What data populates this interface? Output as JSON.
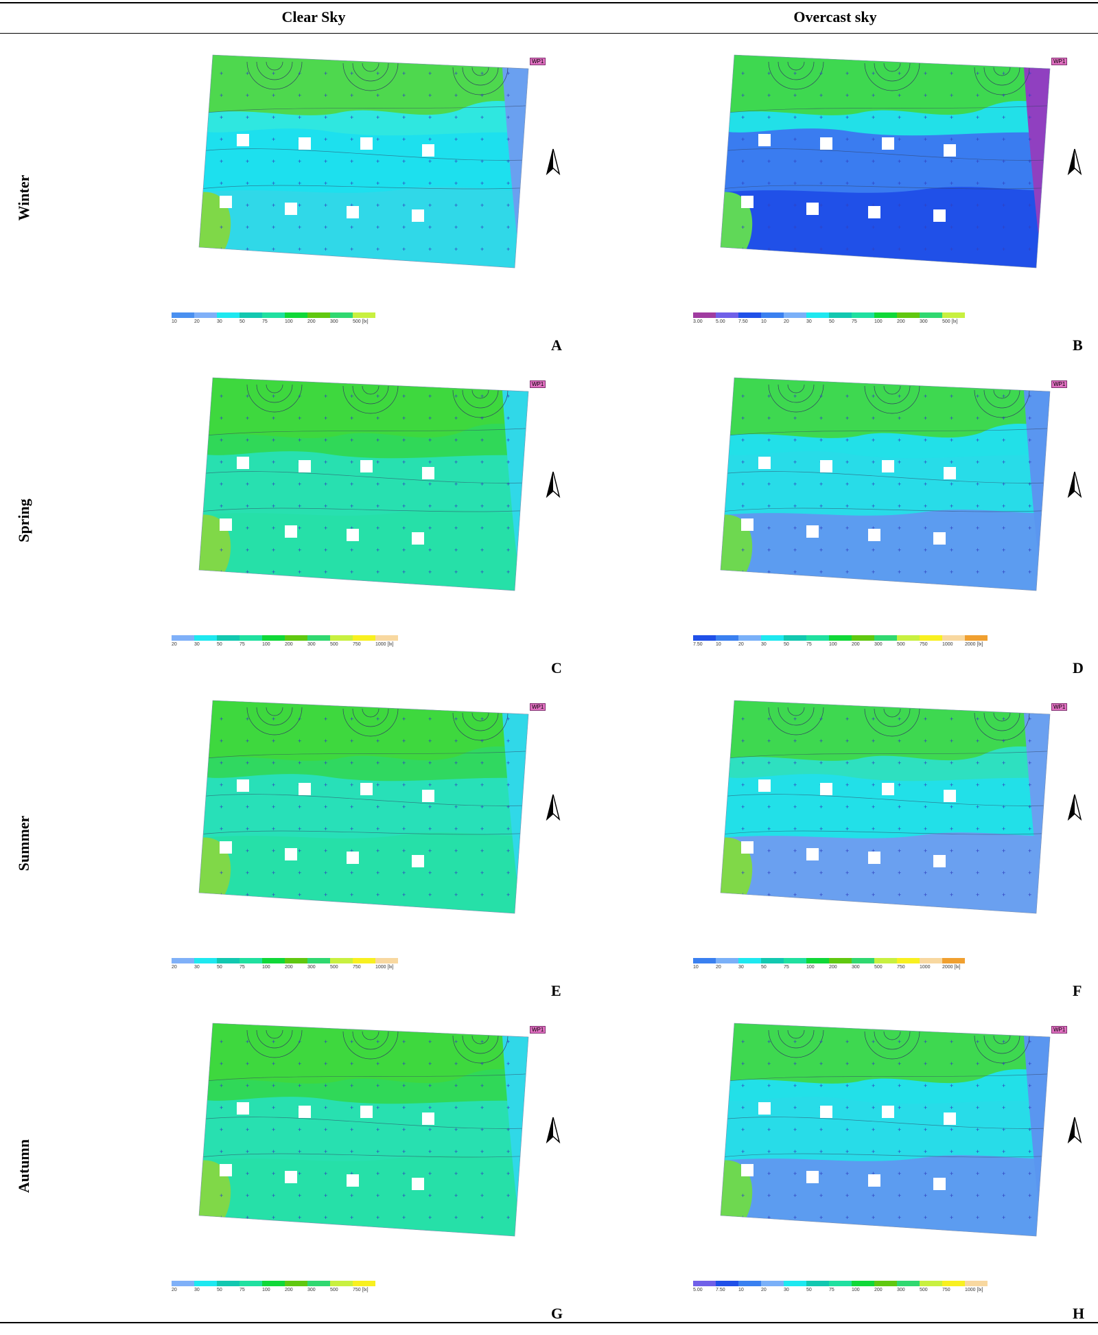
{
  "columns": {
    "clear": "Clear Sky",
    "overcast": "Overcast sky"
  },
  "rows": [
    "Winter",
    "Spring",
    "Summer",
    "Autumn"
  ],
  "window_marker": "WP1",
  "panels": [
    {
      "id": "A",
      "label": "A",
      "sky": "clear",
      "season": "Winter",
      "legend": [
        "10",
        "20",
        "30",
        "50",
        "75",
        "100",
        "200",
        "300",
        "500 [lx]"
      ],
      "legend_colors": [
        "#4a90f0",
        "#7fb0f8",
        "#1ee8f0",
        "#12c8b0",
        "#20e0a0",
        "#10d838",
        "#60c810",
        "#30d870",
        "#c8f040"
      ],
      "zone_colors": {
        "top": "#4ed84e",
        "upper": "#2fe7e0",
        "middle": "#1de0ee",
        "lower": "#30d8e8",
        "corner": "#7fd848",
        "right": "#6aa0f0"
      }
    },
    {
      "id": "B",
      "label": "B",
      "sky": "overcast",
      "season": "Winter",
      "legend": [
        "3.00",
        "5.00",
        "7.50",
        "10",
        "20",
        "30",
        "50",
        "75",
        "100",
        "200",
        "300",
        "500 [lx]"
      ],
      "legend_colors": [
        "#a03ca0",
        "#7060e8",
        "#2050e8",
        "#3a80f0",
        "#7ab0f8",
        "#1ee8f0",
        "#12c8b0",
        "#20e0a0",
        "#10d838",
        "#60c810",
        "#30d870",
        "#c8f040"
      ],
      "zone_colors": {
        "top": "#3ed850",
        "upper": "#22e0e8",
        "middle": "#3a7cf0",
        "lower": "#2050e8",
        "corner": "#60d858",
        "right": "#9040c0"
      }
    },
    {
      "id": "C",
      "label": "C",
      "sky": "clear",
      "season": "Spring",
      "legend": [
        "20",
        "30",
        "50",
        "75",
        "100",
        "200",
        "300",
        "500",
        "750",
        "1000 [lx]"
      ],
      "legend_colors": [
        "#7fb0f8",
        "#1ee8f0",
        "#12c8b0",
        "#20e0a0",
        "#10d838",
        "#60c810",
        "#30d870",
        "#c8f040",
        "#f8f020",
        "#f8d8a0"
      ],
      "zone_colors": {
        "top": "#3ed83e",
        "upper": "#30d858",
        "middle": "#28e0b0",
        "lower": "#26e0a8",
        "corner": "#80d848",
        "right": "#30d8e8"
      }
    },
    {
      "id": "D",
      "label": "D",
      "sky": "overcast",
      "season": "Spring",
      "legend": [
        "7.50",
        "10",
        "20",
        "30",
        "50",
        "75",
        "100",
        "200",
        "300",
        "500",
        "750",
        "1000",
        "2000 [lx]"
      ],
      "legend_colors": [
        "#2050e8",
        "#3a80f0",
        "#7ab0f8",
        "#1ee8f0",
        "#12c8b0",
        "#20e0a0",
        "#10d838",
        "#60c810",
        "#30d870",
        "#c8f040",
        "#f8f020",
        "#f8d8a0",
        "#f0a030"
      ],
      "zone_colors": {
        "top": "#3ed850",
        "upper": "#22e0e8",
        "middle": "#28dce8",
        "lower": "#5c9cf0",
        "corner": "#6ed850",
        "right": "#5a96f0"
      }
    },
    {
      "id": "E",
      "label": "E",
      "sky": "clear",
      "season": "Summer",
      "legend": [
        "20",
        "30",
        "50",
        "75",
        "100",
        "200",
        "300",
        "500",
        "750",
        "1000 [lx]"
      ],
      "legend_colors": [
        "#7fb0f8",
        "#1ee8f0",
        "#12c8b0",
        "#20e0a0",
        "#10d838",
        "#60c810",
        "#30d870",
        "#c8f040",
        "#f8f020",
        "#f8d8a0"
      ],
      "zone_colors": {
        "top": "#3ed83e",
        "upper": "#30d860",
        "middle": "#28e0b8",
        "lower": "#26e0a8",
        "corner": "#80d848",
        "right": "#30d8e8"
      }
    },
    {
      "id": "F",
      "label": "F",
      "sky": "overcast",
      "season": "Summer",
      "legend": [
        "10",
        "20",
        "30",
        "50",
        "75",
        "100",
        "200",
        "300",
        "500",
        "750",
        "1000",
        "2000 [lx]"
      ],
      "legend_colors": [
        "#3a80f0",
        "#7ab0f8",
        "#1ee8f0",
        "#12c8b0",
        "#20e0a0",
        "#10d838",
        "#60c810",
        "#30d870",
        "#c8f040",
        "#f8f020",
        "#f8d8a0",
        "#f0a030"
      ],
      "zone_colors": {
        "top": "#3ed850",
        "upper": "#2ee0c0",
        "middle": "#22e0e8",
        "lower": "#6aa0f0",
        "corner": "#80d848",
        "right": "#6aa0f0"
      }
    },
    {
      "id": "G",
      "label": "G",
      "sky": "clear",
      "season": "Autumn",
      "legend": [
        "20",
        "30",
        "50",
        "75",
        "100",
        "200",
        "300",
        "500",
        "750 [lx]"
      ],
      "legend_colors": [
        "#7fb0f8",
        "#1ee8f0",
        "#12c8b0",
        "#20e0a0",
        "#10d838",
        "#60c810",
        "#30d870",
        "#c8f040",
        "#f8f020"
      ],
      "zone_colors": {
        "top": "#3ed83e",
        "upper": "#30d858",
        "middle": "#28e0b0",
        "lower": "#26e0a8",
        "corner": "#80d848",
        "right": "#30d8e8"
      }
    },
    {
      "id": "H",
      "label": "H",
      "sky": "overcast",
      "season": "Autumn",
      "legend": [
        "5.00",
        "7.50",
        "10",
        "20",
        "30",
        "50",
        "75",
        "100",
        "200",
        "300",
        "500",
        "750",
        "1000 [lx]"
      ],
      "legend_colors": [
        "#7060e8",
        "#2050e8",
        "#3a80f0",
        "#7ab0f8",
        "#1ee8f0",
        "#12c8b0",
        "#20e0a0",
        "#10d838",
        "#60c810",
        "#30d870",
        "#c8f040",
        "#f8f020",
        "#f8d8a0"
      ],
      "zone_colors": {
        "top": "#3ed850",
        "upper": "#22e0e8",
        "middle": "#28dce8",
        "lower": "#5c9cf0",
        "corner": "#6ed850",
        "right": "#5a96f0"
      }
    }
  ]
}
